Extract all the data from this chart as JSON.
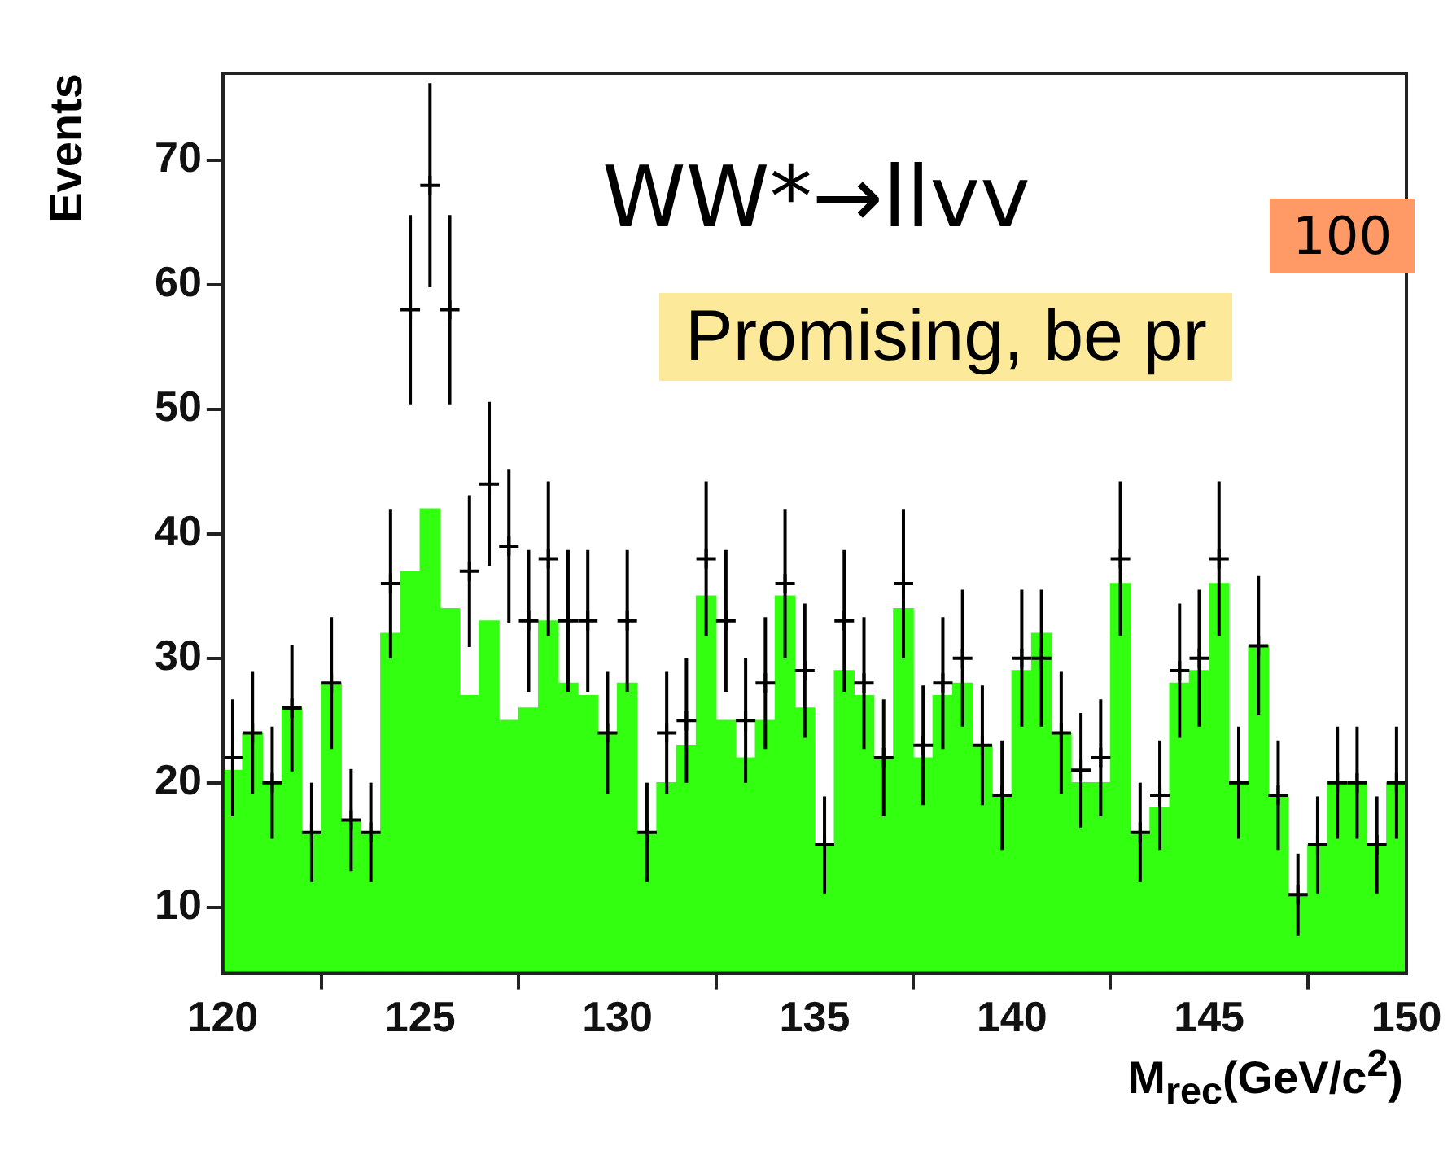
{
  "chart_data": {
    "type": "histogram",
    "xlabel": "M$_{rec}$(GeV/c$^{2}$)",
    "ylabel": "Events",
    "annotations": [
      "WW*→llvv",
      "100",
      "Promising, be pr"
    ],
    "bins": [
      120,
      120.5,
      121,
      121.5,
      122,
      122.5,
      123,
      123.5,
      124,
      124.5,
      125,
      125.5,
      126,
      126.5,
      127,
      127.5,
      128,
      128.5,
      129,
      129.5,
      130,
      130.5,
      131,
      131.5,
      132,
      132.5,
      133,
      133.5,
      134,
      134.5,
      135,
      135.5,
      136,
      136.5,
      137,
      137.5,
      138,
      138.5,
      139,
      139.5,
      140,
      140.5,
      141,
      141.5,
      142,
      142.5,
      143,
      143.5,
      144,
      144.5,
      145,
      145.5,
      146,
      146.5,
      147,
      147.5,
      148,
      148.5,
      149,
      149.5,
      150
    ],
    "series": [
      {
        "color": "#33ff11",
        "values": [
          21,
          24,
          20,
          26,
          16,
          28,
          17,
          16,
          32,
          37,
          42,
          34,
          27,
          33,
          25,
          26,
          33,
          28,
          27,
          24,
          28,
          16,
          20,
          23,
          35,
          25,
          22,
          25,
          35,
          26,
          15,
          29,
          27,
          22,
          34,
          22,
          27,
          28,
          23,
          19,
          29,
          32,
          24,
          20,
          20,
          36,
          16,
          18,
          28,
          29,
          36,
          20,
          31,
          19,
          11,
          15,
          20,
          20,
          15,
          20
        ]
      },
      {
        "type": "scatter",
        "color": "#000000",
        "marker": "cross",
        "x": [
          120.25,
          120.75,
          121.25,
          121.75,
          122.25,
          122.75,
          123.25,
          123.75,
          124.25,
          124.75,
          125.25,
          125.75,
          126.25,
          126.75,
          127.25,
          127.75,
          128.25,
          128.75,
          129.25,
          129.75,
          130.25,
          130.75,
          131.25,
          131.75,
          132.25,
          132.75,
          133.25,
          133.75,
          134.25,
          134.75,
          135.25,
          135.75,
          136.25,
          136.75,
          137.25,
          137.75,
          138.25,
          138.75,
          139.25,
          139.75,
          140.25,
          140.75,
          141.25,
          141.75,
          142.25,
          142.75,
          143.25,
          143.75,
          144.25,
          144.75,
          145.25,
          145.75,
          146.25,
          146.75,
          147.25,
          147.75,
          148.25,
          148.75,
          149.25,
          149.75
        ],
        "values": [
          22,
          24,
          20,
          26,
          16,
          28,
          17,
          16,
          36,
          58,
          68,
          58,
          37,
          44,
          39,
          33,
          38,
          33,
          33,
          24,
          33,
          16,
          24,
          25,
          38,
          33,
          25,
          28,
          36,
          29,
          15,
          33,
          28,
          22,
          36,
          23,
          28,
          30,
          23,
          19,
          30,
          30,
          24,
          21,
          22,
          38,
          16,
          19,
          29,
          30,
          38,
          20,
          31,
          19,
          11,
          15,
          20,
          20,
          15,
          20
        ],
        "errors": [
          4.7,
          4.9,
          4.5,
          5.1,
          4,
          5.3,
          4.1,
          4,
          6,
          7.6,
          8.2,
          7.6,
          6.1,
          6.6,
          6.2,
          5.7,
          6.2,
          5.7,
          5.7,
          4.9,
          5.7,
          4,
          4.9,
          5,
          6.2,
          5.7,
          5,
          5.3,
          6,
          5.4,
          3.9,
          5.7,
          5.3,
          4.7,
          6,
          4.8,
          5.3,
          5.5,
          4.8,
          4.4,
          5.5,
          5.5,
          4.9,
          4.6,
          4.7,
          6.2,
          4,
          4.4,
          5.4,
          5.5,
          6.2,
          4.5,
          5.6,
          4.4,
          3.3,
          3.9,
          4.5,
          4.5,
          3.9,
          4.5
        ]
      }
    ],
    "xlim": [
      120,
      150
    ],
    "xticks": [
      120,
      125,
      130,
      135,
      140,
      145,
      150
    ],
    "ylim": [
      4.7,
      77
    ],
    "yticks": [
      10,
      20,
      30,
      40,
      50,
      60,
      70
    ]
  }
}
